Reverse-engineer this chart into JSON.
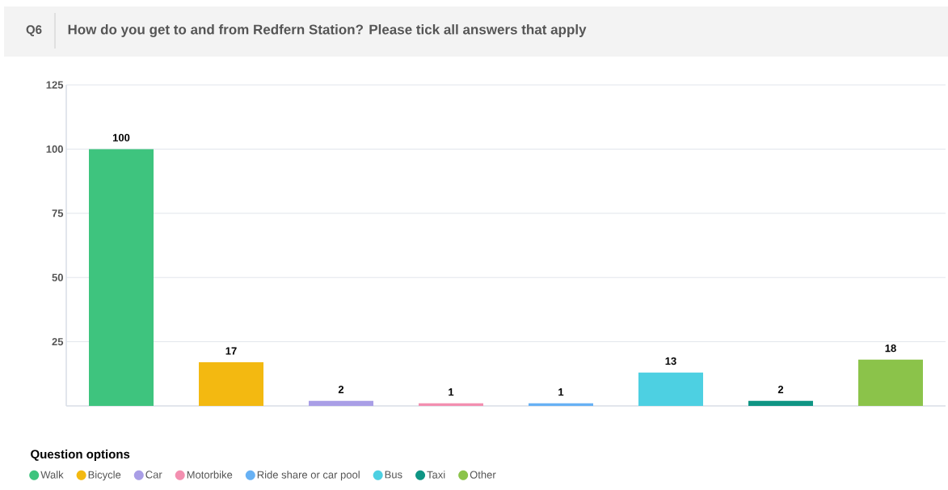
{
  "chart_data": {
    "type": "bar",
    "title": "How do you get to and from Redfern Station? Please tick all answers that apply",
    "annotations": [
      "Q6"
    ],
    "categories": [
      null,
      null,
      null,
      null,
      null,
      null,
      null,
      null
    ],
    "stacked": true,
    "series": [
      {
        "name": "Walk",
        "color": "#3ec47e",
        "values": [
          100,
          null,
          null,
          null,
          null,
          null,
          null,
          null
        ]
      },
      {
        "name": "Bicycle",
        "color": "#f3b911",
        "values": [
          null,
          17,
          null,
          null,
          null,
          null,
          null,
          null
        ]
      },
      {
        "name": "Car",
        "color": "#a99ee6",
        "values": [
          null,
          null,
          2,
          null,
          null,
          null,
          null,
          null
        ]
      },
      {
        "name": "Motorbike",
        "color": "#f38fb0",
        "values": [
          null,
          null,
          null,
          1,
          null,
          null,
          null,
          null
        ]
      },
      {
        "name": "Ride share or car pool",
        "color": "#67b1f4",
        "values": [
          null,
          null,
          null,
          null,
          1,
          null,
          null,
          null
        ]
      },
      {
        "name": "Bus",
        "color": "#4dd0e2",
        "values": [
          null,
          null,
          null,
          null,
          null,
          13,
          null,
          null
        ]
      },
      {
        "name": "Taxi",
        "color": "#0f9584",
        "values": [
          null,
          null,
          null,
          null,
          null,
          null,
          2,
          null
        ]
      },
      {
        "name": "Other",
        "color": "#8bc34a",
        "values": [
          null,
          null,
          null,
          null,
          null,
          null,
          null,
          18
        ]
      }
    ],
    "ylim": [
      0,
      125
    ],
    "yticks": [
      25,
      50,
      75,
      100,
      125
    ],
    "grid": "y",
    "data_labels": true,
    "tick_labels": "y",
    "legend": "bottom",
    "legend_title": "Question options"
  }
}
